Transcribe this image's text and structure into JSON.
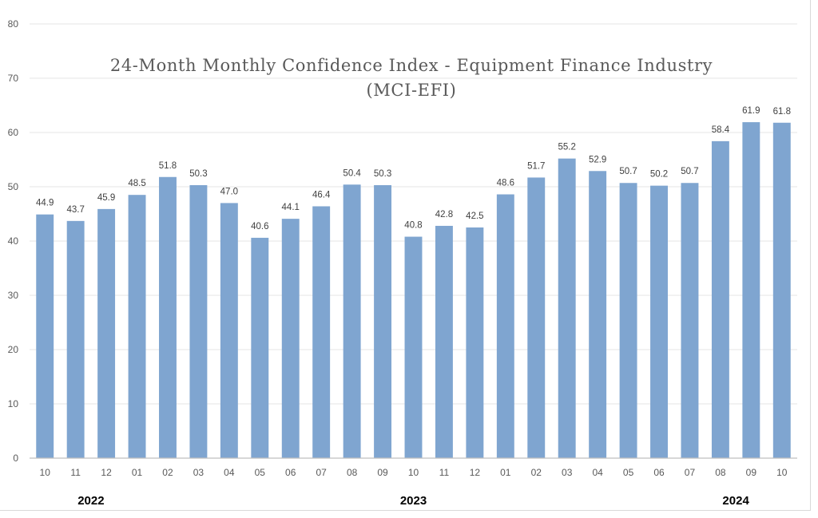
{
  "chart_data": {
    "type": "bar",
    "title_line1": "24-Month Monthly Confidence Index - Equipment Finance Industry",
    "title_line2": "(MCI-EFI)",
    "categories": [
      "10",
      "11",
      "12",
      "01",
      "02",
      "03",
      "04",
      "05",
      "06",
      "07",
      "08",
      "09",
      "10",
      "11",
      "12",
      "01",
      "02",
      "03",
      "04",
      "05",
      "06",
      "07",
      "08",
      "09",
      "10"
    ],
    "values": [
      44.9,
      43.7,
      45.9,
      48.5,
      51.8,
      50.3,
      47.0,
      40.6,
      44.1,
      46.4,
      50.4,
      50.3,
      40.8,
      42.8,
      42.5,
      48.6,
      51.7,
      55.2,
      52.9,
      50.7,
      50.2,
      50.7,
      58.4,
      61.9,
      61.8
    ],
    "value_labels": [
      "44.9",
      "43.7",
      "45.9",
      "48.5",
      "51.8",
      "50.3",
      "47.0",
      "40.6",
      "44.1",
      "46.4",
      "50.4",
      "50.3",
      "40.8",
      "42.8",
      "42.5",
      "48.6",
      "51.7",
      "55.2",
      "52.9",
      "50.7",
      "50.2",
      "50.7",
      "58.4",
      "61.9",
      "61.8"
    ],
    "year_labels": [
      {
        "label": "2022",
        "month_index": 1.5
      },
      {
        "label": "2023",
        "month_index": 12
      },
      {
        "label": "2024",
        "month_index": 22.5
      }
    ],
    "ylim": [
      0,
      80
    ],
    "yticks": [
      0,
      10,
      20,
      30,
      40,
      50,
      60,
      70,
      80
    ],
    "grid": true,
    "bar_color": "#7fa5d0",
    "grid_color": "#e6e6e6",
    "axis_color": "#bfbfbf",
    "xlabel": "",
    "ylabel": ""
  }
}
